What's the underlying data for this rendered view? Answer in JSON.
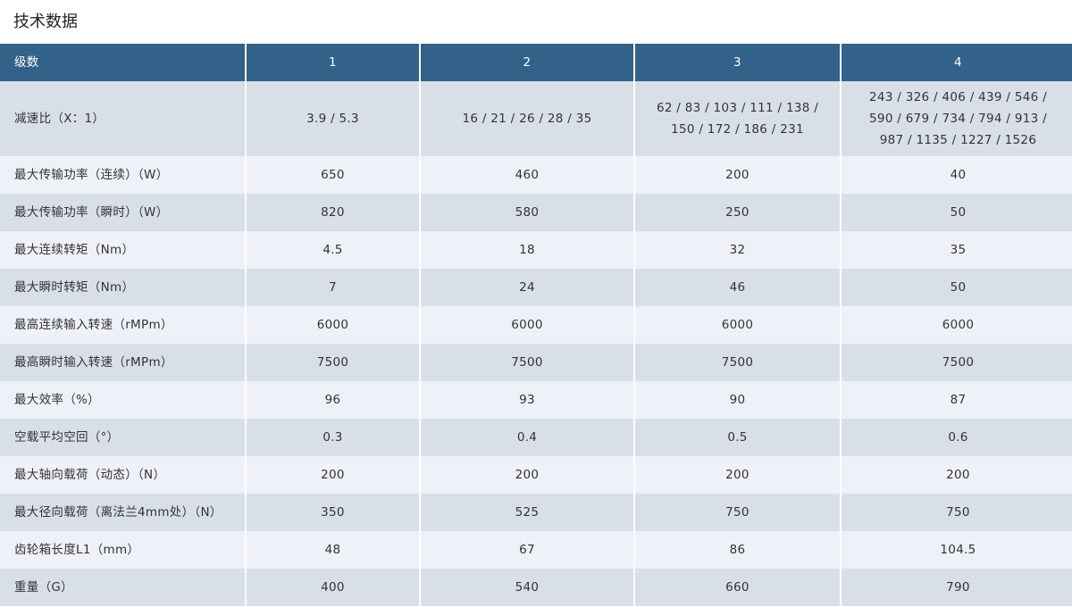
{
  "title": "技术数据",
  "header": [
    "级数",
    "1",
    "2",
    "3",
    "4"
  ],
  "rows": [
    [
      "减速比（X：1）",
      "3.9 / 5.3",
      "16 / 21 / 26 / 28 / 35",
      "62 / 83 / 103 / 111 / 138 / 150 / 172 / 186 / 231",
      "243 / 326 / 406 / 439 / 546 / 590 / 679 / 734 / 794 / 913 / 987 / 1135 / 1227 / 1526"
    ],
    [
      "最大传输功率（连续）（W）",
      "650",
      "460",
      "200",
      "40"
    ],
    [
      "最大传输功率（瞬时）（W）",
      "820",
      "580",
      "250",
      "50"
    ],
    [
      "最大连续转矩（Nm）",
      "4.5",
      "18",
      "32",
      "35"
    ],
    [
      "最大瞬时转矩（Nm）",
      "7",
      "24",
      "46",
      "50"
    ],
    [
      "最高连续输入转速（rMPm）",
      "6000",
      "6000",
      "6000",
      "6000"
    ],
    [
      "最高瞬时输入转速（rMPm）",
      "7500",
      "7500",
      "7500",
      "7500"
    ],
    [
      "最大效率（%）",
      "96",
      "93",
      "90",
      "87"
    ],
    [
      "空载平均空回（°）",
      "0.3",
      "0.4",
      "0.5",
      "0.6"
    ],
    [
      "最大轴向载荷（动态）（N）",
      "200",
      "200",
      "200",
      "200"
    ],
    [
      "最大径向载荷（离法兰4mm处）（N）",
      "350",
      "525",
      "750",
      "750"
    ],
    [
      "齿轮箱长度L1（mm）",
      "48",
      "67",
      "86",
      "104.5"
    ],
    [
      "重量（G）",
      "400",
      "540",
      "660",
      "790"
    ]
  ],
  "colors": {
    "header_bg": "#32618a",
    "row_odd": "#d9dfe9",
    "row_even": "#eef1f8"
  }
}
